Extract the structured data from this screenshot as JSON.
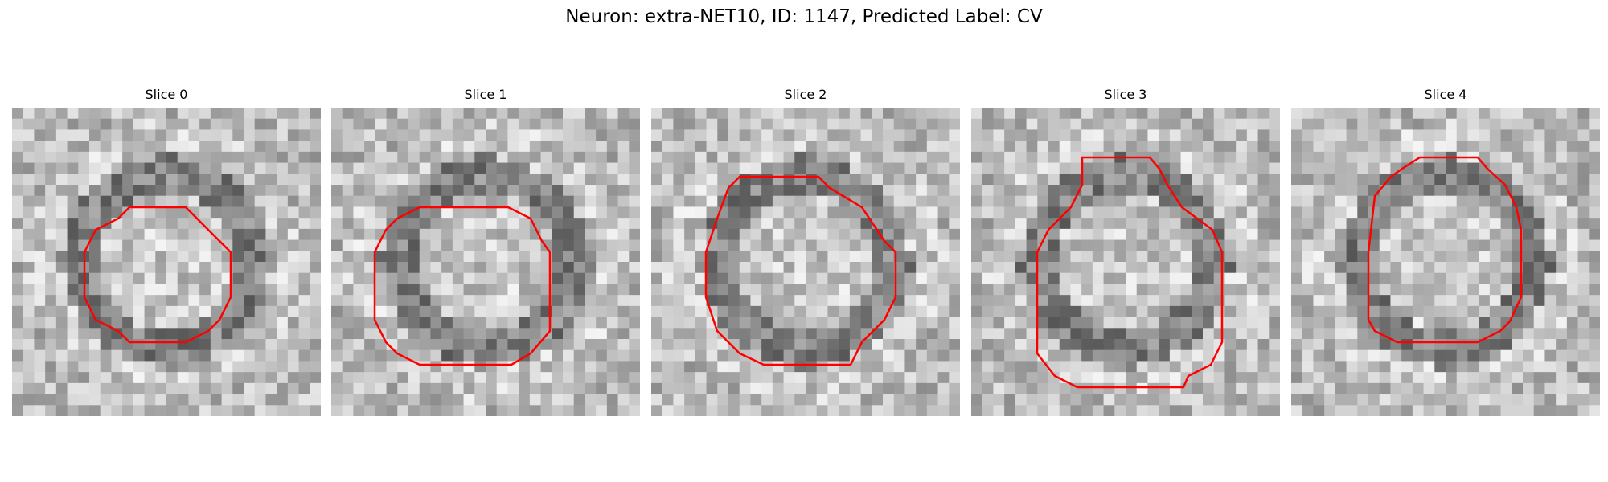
{
  "figure": {
    "title": "Neuron: extra-NET10, ID: 1147, Predicted Label: CV",
    "contour_color": "#ff0000",
    "colormap": "grayscale"
  },
  "panels": [
    {
      "title": "Slice 0"
    },
    {
      "title": "Slice 1"
    },
    {
      "title": "Slice 2"
    },
    {
      "title": "Slice 3"
    },
    {
      "title": "Slice 4"
    }
  ]
}
